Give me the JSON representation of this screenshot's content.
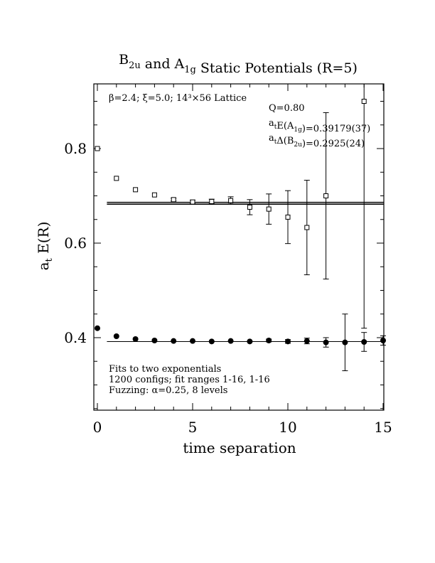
{
  "chart_data": {
    "type": "scatter",
    "title_parts": [
      {
        "t": "B"
      },
      {
        "t": "2u",
        "sub": true
      },
      {
        "t": " and A"
      },
      {
        "t": "1g",
        "sub": true
      },
      {
        "t": " Static Potentials (R=5)"
      }
    ],
    "xlabel": "time separation",
    "ylabel_main": "a",
    "ylabel_sub": "t",
    "ylabel_rest": " E(R)",
    "xlim": [
      0,
      15
    ],
    "ylim": [
      0.25,
      0.94
    ],
    "x_ticks": [
      0,
      5,
      10,
      15
    ],
    "y_ticks": [
      0.4,
      0.6,
      0.8
    ],
    "x_tick_labels": [
      "0",
      "5",
      "10",
      "15"
    ],
    "y_tick_labels": [
      "0.4",
      "0.6",
      "0.8"
    ],
    "annotation_top_left": "β=2.4; ξ=5.0; 14³×56 Lattice",
    "annotation_right": [
      [
        {
          "t": "Q=0.80"
        }
      ],
      [
        {
          "t": "a"
        },
        {
          "t": "t",
          "sub": true
        },
        {
          "t": "E(A"
        },
        {
          "t": "1g",
          "sub": true
        },
        {
          "t": ")=0.39179(37)"
        }
      ],
      [
        {
          "t": "a"
        },
        {
          "t": "t",
          "sub": true
        },
        {
          "t": "Δ(B"
        },
        {
          "t": "2u",
          "sub": true
        },
        {
          "t": ")=0.2925(24)"
        }
      ]
    ],
    "annotation_bottom_left": [
      "Fits to two exponentials",
      "1200 configs; fit ranges 1-16, 1-16",
      "Fuzzing: α=0.25, 8 levels"
    ],
    "series": [
      {
        "marker": "open-square",
        "points": [
          {
            "x": 0,
            "y": 0.8,
            "err": 0.002
          },
          {
            "x": 1,
            "y": 0.737,
            "err": 0.002
          },
          {
            "x": 2,
            "y": 0.713,
            "err": 0.002
          },
          {
            "x": 3,
            "y": 0.702,
            "err": 0.002
          },
          {
            "x": 4,
            "y": 0.692,
            "err": 0.003
          },
          {
            "x": 5,
            "y": 0.687,
            "err": 0.004
          },
          {
            "x": 6,
            "y": 0.688,
            "err": 0.005
          },
          {
            "x": 7,
            "y": 0.69,
            "err": 0.008
          },
          {
            "x": 8,
            "y": 0.676,
            "err": 0.016
          },
          {
            "x": 9,
            "y": 0.672,
            "err": 0.032
          },
          {
            "x": 10,
            "y": 0.655,
            "err": 0.056
          },
          {
            "x": 11,
            "y": 0.633,
            "err": 0.1
          },
          {
            "x": 12,
            "y": 0.7,
            "err": 0.176
          },
          {
            "x": 14,
            "y": 0.9,
            "err": 0.48
          }
        ]
      },
      {
        "marker": "filled-circle",
        "points": [
          {
            "x": 0,
            "y": 0.42,
            "err": 0.001
          },
          {
            "x": 1,
            "y": 0.403,
            "err": 0.001
          },
          {
            "x": 2,
            "y": 0.397,
            "err": 0.001
          },
          {
            "x": 3,
            "y": 0.394,
            "err": 0.001
          },
          {
            "x": 4,
            "y": 0.393,
            "err": 0.001
          },
          {
            "x": 5,
            "y": 0.393,
            "err": 0.001
          },
          {
            "x": 6,
            "y": 0.392,
            "err": 0.001
          },
          {
            "x": 7,
            "y": 0.393,
            "err": 0.002
          },
          {
            "x": 8,
            "y": 0.392,
            "err": 0.002
          },
          {
            "x": 9,
            "y": 0.394,
            "err": 0.003
          },
          {
            "x": 10,
            "y": 0.392,
            "err": 0.004
          },
          {
            "x": 11,
            "y": 0.393,
            "err": 0.006
          },
          {
            "x": 12,
            "y": 0.39,
            "err": 0.01
          },
          {
            "x": 13,
            "y": 0.39,
            "err": 0.06
          },
          {
            "x": 14,
            "y": 0.391,
            "err": 0.02
          },
          {
            "x": 15,
            "y": 0.394,
            "err": 0.01
          }
        ]
      }
    ],
    "fit_bands": [
      {
        "x_range": [
          1,
          16
        ],
        "lines": [
          0.39179
        ]
      },
      {
        "x_range": [
          1,
          16
        ],
        "lines": [
          0.6819,
          0.6843,
          0.6867
        ]
      }
    ],
    "y_minor_step": 0.05,
    "x_minor_step": 1
  }
}
